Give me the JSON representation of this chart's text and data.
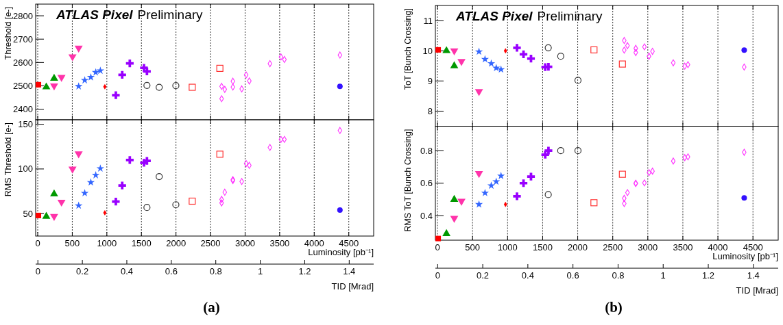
{
  "chart_data": [
    {
      "type": "scatter",
      "title": "ATLAS Pixel",
      "subtitle": "Preliminary",
      "ylabel": "Threshold [e-]",
      "xlim": [
        -30,
        4860
      ],
      "xticks": [
        0,
        500,
        1000,
        1500,
        2000,
        2500,
        3000,
        3500,
        4000,
        4500
      ],
      "ylim": [
        2355,
        2850
      ],
      "yticks": [
        2400,
        2500,
        2600,
        2700,
        2800
      ],
      "grid": "x",
      "tick_labels": "y",
      "series": [
        {
          "color": "#ff0000",
          "marker": "square",
          "x": [
            10
          ],
          "values": [
            2505
          ]
        },
        {
          "color": "#009900",
          "marker": "triangle",
          "x": [
            124,
            237
          ],
          "values": [
            2495,
            2532
          ]
        },
        {
          "color": "#ff33aa",
          "marker": "triangle-down",
          "x": [
            237,
            344,
            503,
            592
          ],
          "values": [
            2500,
            2537,
            2625,
            2662
          ]
        },
        {
          "color": "#3366ff",
          "marker": "star",
          "x": [
            592,
            680,
            768,
            839,
            906
          ],
          "values": [
            2498,
            2524,
            2537,
            2558,
            2565
          ]
        },
        {
          "color": "#ff0000",
          "marker": "diamond",
          "x": [
            971
          ],
          "values": [
            2496
          ]
        },
        {
          "color": "#9900ff",
          "marker": "cross",
          "x": [
            1130,
            1222,
            1332,
            1537,
            1580
          ],
          "values": [
            2460,
            2547,
            2596,
            2577,
            2562
          ]
        },
        {
          "color": "#333333",
          "marker": "circle-open",
          "x": [
            1580,
            1757,
            1998
          ],
          "values": [
            2502,
            2494,
            2501
          ]
        },
        {
          "color": "#ff3333",
          "marker": "square-open",
          "x": [
            2235,
            2635
          ],
          "values": [
            2494,
            2575
          ]
        },
        {
          "color": "#ff33ff",
          "marker": "diamond-open",
          "x": [
            2660,
            2660,
            2706,
            2823,
            2823,
            2951,
            3015,
            3061,
            3359,
            3519,
            3569,
            4372
          ],
          "values": [
            2498,
            2445,
            2485,
            2520,
            2495,
            2487,
            2547,
            2521,
            2595,
            2624,
            2613,
            2632
          ]
        },
        {
          "color": "#3311ff",
          "marker": "circle",
          "x": [
            4372
          ],
          "values": [
            2498
          ]
        }
      ]
    },
    {
      "type": "scatter",
      "ylabel": "RMS Threshold [e-]",
      "xlabel": "Luminosity [pb⁻¹]",
      "x2label": "TID [Mrad]",
      "annotations": [
        "(a)"
      ],
      "xlim": [
        -30,
        4860
      ],
      "xticks": [
        0,
        500,
        1000,
        1500,
        2000,
        2500,
        3000,
        3500,
        4000,
        4500
      ],
      "x2lim": [
        -0.01,
        1.51
      ],
      "x2ticks": [
        0,
        0.2,
        0.4,
        0.6,
        0.8,
        1,
        1.2,
        1.4
      ],
      "ylim": [
        25,
        155
      ],
      "yticks": [
        50,
        100,
        150
      ],
      "grid": "x",
      "series": [
        {
          "color": "#ff0000",
          "marker": "square",
          "x": [
            10
          ],
          "values": [
            48
          ]
        },
        {
          "color": "#009900",
          "marker": "triangle",
          "x": [
            124,
            237
          ],
          "values": [
            47,
            72
          ]
        },
        {
          "color": "#ff33aa",
          "marker": "triangle-down",
          "x": [
            237,
            344,
            503,
            592
          ],
          "values": [
            47,
            63,
            100,
            117
          ]
        },
        {
          "color": "#3366ff",
          "marker": "star",
          "x": [
            592,
            680,
            768,
            839,
            906
          ],
          "values": [
            59,
            73,
            85,
            93,
            100.5
          ]
        },
        {
          "color": "#ff0000",
          "marker": "diamond",
          "x": [
            971
          ],
          "values": [
            51
          ]
        },
        {
          "color": "#9900ff",
          "marker": "cross",
          "x": [
            1130,
            1222,
            1332,
            1537,
            1580
          ],
          "values": [
            63.5,
            81.5,
            110,
            107,
            109
          ]
        },
        {
          "color": "#333333",
          "marker": "circle-open",
          "x": [
            1580,
            1757,
            1998
          ],
          "values": [
            57,
            91.5,
            60
          ]
        },
        {
          "color": "#ff3333",
          "marker": "square-open",
          "x": [
            2235,
            2635
          ],
          "values": [
            64,
            116.5
          ]
        },
        {
          "color": "#ff33ff",
          "marker": "diamond-open",
          "x": [
            2660,
            2660,
            2706,
            2823,
            2823,
            2951,
            3015,
            3061,
            3359,
            3519,
            3569,
            4372
          ],
          "values": [
            62,
            66,
            74,
            88,
            87,
            86,
            106,
            104,
            124,
            133,
            133,
            143
          ]
        },
        {
          "color": "#3311ff",
          "marker": "circle",
          "x": [
            4372
          ],
          "values": [
            54
          ]
        }
      ]
    },
    {
      "type": "scatter",
      "title": "ATLAS Pixel",
      "subtitle": "Preliminary",
      "ylabel": "ToT [Bunch Crossing]",
      "xlim": [
        -30,
        4860
      ],
      "xticks": [
        0,
        500,
        1000,
        1500,
        2000,
        2500,
        3000,
        3500,
        4000,
        4500
      ],
      "ylim": [
        7.5,
        11.5
      ],
      "yticks": [
        8,
        9,
        10,
        11
      ],
      "grid": "x",
      "tick_labels": "y",
      "series": [
        {
          "color": "#ff0000",
          "marker": "square",
          "x": [
            10
          ],
          "values": [
            10.03
          ]
        },
        {
          "color": "#009900",
          "marker": "triangle",
          "x": [
            128,
            239
          ],
          "values": [
            10.0,
            9.5
          ]
        },
        {
          "color": "#ff33aa",
          "marker": "triangle-down",
          "x": [
            239,
            342,
            592
          ],
          "values": [
            10.0,
            9.65,
            8.65
          ]
        },
        {
          "color": "#3366ff",
          "marker": "star",
          "x": [
            592,
            678,
            767,
            838,
            906
          ],
          "values": [
            9.97,
            9.72,
            9.58,
            9.43,
            9.38
          ]
        },
        {
          "color": "#ff0000",
          "marker": "diamond",
          "x": [
            970
          ],
          "values": [
            10.0
          ]
        },
        {
          "color": "#9900ff",
          "marker": "cross",
          "x": [
            1134,
            1227,
            1334,
            1537,
            1583
          ],
          "values": [
            10.1,
            9.88,
            9.74,
            9.46,
            9.47
          ]
        },
        {
          "color": "#333333",
          "marker": "circle-open",
          "x": [
            1580,
            1758,
            2004
          ],
          "values": [
            10.1,
            9.82,
            9.02
          ]
        },
        {
          "color": "#ff3333",
          "marker": "square-open",
          "x": [
            2232,
            2638
          ],
          "values": [
            10.03,
            9.56
          ]
        },
        {
          "color": "#ff33ff",
          "marker": "diamond-open",
          "x": [
            2664,
            2710,
            2664,
            2828,
            2828,
            2952,
            3017,
            3067,
            3363,
            3527,
            3573,
            4375
          ],
          "values": [
            10.34,
            10.17,
            10.02,
            10.08,
            9.94,
            10.13,
            9.82,
            9.98,
            9.6,
            9.49,
            9.54,
            9.46
          ]
        },
        {
          "color": "#3311ff",
          "marker": "circle",
          "x": [
            4375
          ],
          "values": [
            10.02
          ]
        }
      ]
    },
    {
      "type": "scatter",
      "ylabel": "RMS ToT [Bunch Crossing]",
      "xlabel": "Luminosity [pb⁻¹]",
      "x2label": "TID [Mrad]",
      "annotations": [
        "(b)"
      ],
      "xlim": [
        -30,
        4860
      ],
      "xticks": [
        0,
        500,
        1000,
        1500,
        2000,
        2500,
        3000,
        3500,
        4000,
        4500
      ],
      "x2lim": [
        -0.01,
        1.51
      ],
      "x2ticks": [
        0,
        0.2,
        0.4,
        0.6,
        0.8,
        1,
        1.2,
        1.4
      ],
      "ylim": [
        0.25,
        0.95
      ],
      "yticks": [
        0.4,
        0.6,
        0.8
      ],
      "grid": "x",
      "series": [
        {
          "color": "#ff0000",
          "marker": "square",
          "x": [
            10
          ],
          "values": [
            0.26
          ]
        },
        {
          "color": "#009900",
          "marker": "triangle",
          "x": [
            128,
            239
          ],
          "values": [
            0.29,
            0.5
          ]
        },
        {
          "color": "#ff33aa",
          "marker": "triangle-down",
          "x": [
            239,
            342,
            592
          ],
          "values": [
            0.385,
            0.49,
            0.66
          ]
        },
        {
          "color": "#3366ff",
          "marker": "star",
          "x": [
            592,
            678,
            767,
            838,
            906
          ],
          "values": [
            0.47,
            0.54,
            0.585,
            0.61,
            0.645
          ]
        },
        {
          "color": "#ff0000",
          "marker": "diamond",
          "x": [
            970
          ],
          "values": [
            0.47
          ]
        },
        {
          "color": "#9900ff",
          "marker": "cross",
          "x": [
            1134,
            1227,
            1334,
            1537,
            1583
          ],
          "values": [
            0.52,
            0.6,
            0.64,
            0.775,
            0.8
          ]
        },
        {
          "color": "#333333",
          "marker": "circle-open",
          "x": [
            1580,
            1758,
            2004
          ],
          "values": [
            0.53,
            0.8,
            0.8
          ]
        },
        {
          "color": "#ff3333",
          "marker": "square-open",
          "x": [
            2232,
            2638
          ],
          "values": [
            0.48,
            0.655
          ]
        },
        {
          "color": "#ff33ff",
          "marker": "diamond-open",
          "x": [
            2664,
            2664,
            2710,
            2828,
            2828,
            2952,
            3017,
            3067,
            3363,
            3527,
            3573,
            4375
          ],
          "values": [
            0.475,
            0.507,
            0.542,
            0.6,
            0.598,
            0.602,
            0.665,
            0.674,
            0.736,
            0.757,
            0.762,
            0.79
          ]
        },
        {
          "color": "#3311ff",
          "marker": "circle",
          "x": [
            4375
          ],
          "values": [
            0.51
          ]
        }
      ]
    }
  ]
}
